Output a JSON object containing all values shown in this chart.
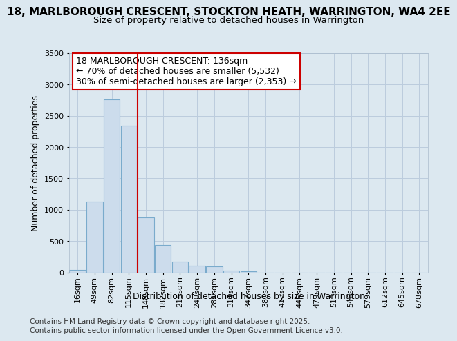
{
  "title": "18, MARLBOROUGH CRESCENT, STOCKTON HEATH, WARRINGTON, WA4 2EE",
  "subtitle": "Size of property relative to detached houses in Warrington",
  "xlabel": "Distribution of detached houses by size in Warrington",
  "ylabel": "Number of detached properties",
  "footer_line1": "Contains HM Land Registry data © Crown copyright and database right 2025.",
  "footer_line2": "Contains public sector information licensed under the Open Government Licence v3.0.",
  "annotation_line1": "18 MARLBOROUGH CRESCENT: 136sqm",
  "annotation_line2": "← 70% of detached houses are smaller (5,532)",
  "annotation_line3": "30% of semi-detached houses are larger (2,353) →",
  "bar_labels": [
    "16sqm",
    "49sqm",
    "82sqm",
    "115sqm",
    "148sqm",
    "182sqm",
    "215sqm",
    "248sqm",
    "281sqm",
    "314sqm",
    "347sqm",
    "380sqm",
    "413sqm",
    "446sqm",
    "479sqm",
    "513sqm",
    "546sqm",
    "579sqm",
    "612sqm",
    "645sqm",
    "678sqm"
  ],
  "bar_values": [
    40,
    1130,
    2760,
    2340,
    880,
    440,
    175,
    100,
    90,
    30,
    20,
    0,
    0,
    0,
    0,
    0,
    0,
    0,
    0,
    0,
    0
  ],
  "bar_color": "#ccdcec",
  "bar_edge_color": "#7aabcc",
  "vline_color": "#cc0000",
  "ylim": [
    0,
    3500
  ],
  "yticks": [
    0,
    500,
    1000,
    1500,
    2000,
    2500,
    3000,
    3500
  ],
  "bg_color": "#dce8f0",
  "plot_bg_color": "#dce8f0",
  "grid_color": "#bbccdd",
  "title_fontsize": 11,
  "subtitle_fontsize": 9.5,
  "annotation_fontsize": 9,
  "axis_label_fontsize": 9,
  "tick_fontsize": 8,
  "footer_fontsize": 7.5
}
